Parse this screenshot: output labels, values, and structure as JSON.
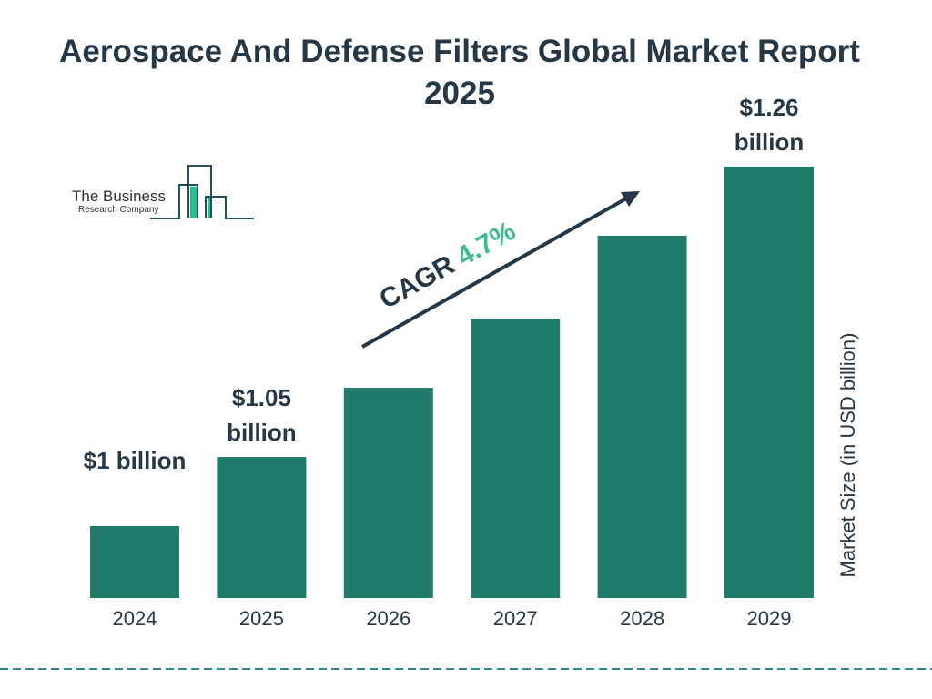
{
  "title": "Aerospace And Defense Filters Global Market Report 2025",
  "logo": {
    "line1": "The Business",
    "line2": "Research Company"
  },
  "cagr": {
    "label": "CAGR",
    "value": "4.7%"
  },
  "colors": {
    "bar": "#207b6b",
    "text": "#263746",
    "accent": "#3dbb8c",
    "dash": "#2a8a85"
  },
  "chart_data": {
    "type": "bar",
    "title": "Aerospace And Defense Filters Global Market Report 2025",
    "categories": [
      "2024",
      "2025",
      "2026",
      "2027",
      "2028",
      "2029"
    ],
    "values": [
      1.0,
      1.05,
      1.1,
      1.15,
      1.21,
      1.26
    ],
    "data_labels": [
      {
        "index": 0,
        "lines": [
          "$1 billion"
        ]
      },
      {
        "index": 1,
        "lines": [
          "$1.05",
          "billion"
        ]
      },
      {
        "index": 5,
        "lines": [
          "$1.26",
          "billion"
        ]
      }
    ],
    "xlabel": "",
    "ylabel": "Market Size (in USD billion)",
    "grid": false,
    "legend": "none"
  }
}
